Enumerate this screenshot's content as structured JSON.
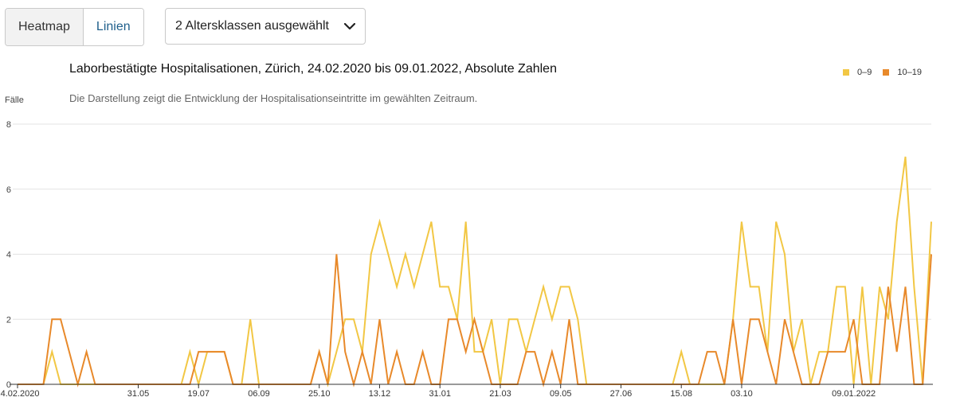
{
  "controls": {
    "view_toggle": [
      {
        "label": "Heatmap",
        "active": false
      },
      {
        "label": "Linien",
        "active": true
      }
    ],
    "age_select_label": "2 Altersklassen ausgewählt"
  },
  "colors": {
    "series_0_9": "#f2c744",
    "series_10_19": "#e8892a",
    "grid": "#e3e3e3",
    "axis": "#333333",
    "accent_link": "#1f5f8b"
  },
  "chart_data": {
    "type": "line",
    "title": "Laborbestätigte Hospitalisationen, Zürich, 24.02.2020 bis 09.01.2022, Absolute Zahlen",
    "subtitle": "Die Darstellung zeigt die Entwicklung der Hospitalisationseintritte im gewählten Zeitraum.",
    "ylabel": "Fälle",
    "xlabel": "",
    "ylim": [
      0,
      8
    ],
    "yticks": [
      0,
      2,
      4,
      6,
      8
    ],
    "grid": true,
    "legend_position": "top-right",
    "x_tick_labels": [
      "24.02.2020",
      "31.05",
      "19.07",
      "06.09",
      "25.10",
      "13.12",
      "31.01",
      "21.03",
      "09.05",
      "27.06",
      "15.08",
      "03.10",
      "09.01.2022"
    ],
    "x_tick_weeks": [
      0,
      14,
      21,
      28,
      35,
      42,
      49,
      56,
      63,
      70,
      77,
      84,
      97
    ],
    "series": [
      {
        "name": "0–9",
        "color": "#f2c744",
        "values": [
          0,
          0,
          0,
          0,
          1,
          0,
          0,
          0,
          0,
          0,
          0,
          0,
          0,
          0,
          0,
          0,
          0,
          0,
          0,
          0,
          1,
          0,
          1,
          1,
          1,
          0,
          0,
          2,
          0,
          0,
          0,
          0,
          0,
          0,
          0,
          1,
          0,
          1,
          2,
          2,
          1,
          4,
          5,
          4,
          3,
          4,
          3,
          4,
          5,
          3,
          3,
          2,
          5,
          1,
          1,
          2,
          0,
          2,
          2,
          1,
          2,
          3,
          2,
          3,
          3,
          2,
          0,
          0,
          0,
          0,
          0,
          0,
          0,
          0,
          0,
          0,
          0,
          1,
          0,
          0,
          0,
          0,
          0,
          2,
          5,
          3,
          3,
          1,
          5,
          4,
          1,
          2,
          0,
          1,
          1,
          3,
          3,
          0,
          3,
          0,
          3,
          2,
          5,
          7,
          3,
          0,
          5
        ]
      },
      {
        "name": "10–19",
        "color": "#e8892a",
        "values": [
          0,
          0,
          0,
          0,
          2,
          2,
          1,
          0,
          1,
          0,
          0,
          0,
          0,
          0,
          0,
          0,
          0,
          0,
          0,
          0,
          0,
          1,
          1,
          1,
          1,
          0,
          0,
          0,
          0,
          0,
          0,
          0,
          0,
          0,
          0,
          1,
          0,
          4,
          1,
          0,
          1,
          0,
          2,
          0,
          1,
          0,
          0,
          1,
          0,
          0,
          2,
          2,
          1,
          2,
          1,
          0,
          0,
          0,
          0,
          1,
          1,
          0,
          1,
          0,
          2,
          0,
          0,
          0,
          0,
          0,
          0,
          0,
          0,
          0,
          0,
          0,
          0,
          0,
          0,
          0,
          1,
          1,
          0,
          2,
          0,
          2,
          2,
          1,
          0,
          2,
          1,
          0,
          0,
          0,
          1,
          1,
          1,
          2,
          0,
          0,
          0,
          3,
          1,
          3,
          0,
          0,
          4
        ]
      }
    ]
  }
}
